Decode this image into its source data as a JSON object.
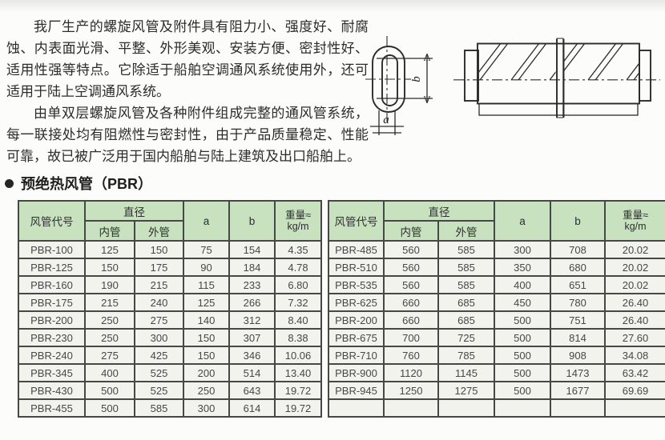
{
  "intro": {
    "paragraph1": "我厂生产的螺旋风管及附件具有阻力小、强度好、耐腐蚀、内表面光滑、平整、外形美观、安装方便、密封性好、适用性强等特点。它除适于船舶空调通风系统使用外，还可适用于陆上空调通风系统。",
    "paragraph2": "由单双层螺旋风管及各种附件组成完整的通风管系统，每一联接处均有阻燃性与密封性，由于产品质量稳定、性能可靠，故已被广泛用于国内船舶与陆上建筑及出口船舶上。"
  },
  "section": {
    "title": "预绝热风管（PBR）"
  },
  "diagram": {
    "dim_a_label": "a",
    "dim_b_label": "b"
  },
  "table": {
    "headers": {
      "code": "风管代号",
      "diameter": "直径",
      "inner": "内管",
      "outer": "外管",
      "a": "a",
      "b": "b",
      "weight_top": "重量≈",
      "weight_bottom": "kg/m"
    },
    "left_rows": [
      [
        "PBR-100",
        "125",
        "150",
        "75",
        "154",
        "4.35"
      ],
      [
        "PBR-125",
        "150",
        "175",
        "90",
        "184",
        "4.78"
      ],
      [
        "PBR-160",
        "190",
        "215",
        "115",
        "233",
        "6.80"
      ],
      [
        "PBR-175",
        "215",
        "240",
        "125",
        "266",
        "7.32"
      ],
      [
        "PBR-200",
        "250",
        "275",
        "140",
        "312",
        "8.40"
      ],
      [
        "PBR-230",
        "250",
        "300",
        "150",
        "307",
        "8.38"
      ],
      [
        "PBR-240",
        "275",
        "425",
        "150",
        "346",
        "10.06"
      ],
      [
        "PBR-345",
        "400",
        "525",
        "200",
        "514",
        "13.40"
      ],
      [
        "PBR-430",
        "500",
        "525",
        "250",
        "643",
        "19.72"
      ],
      [
        "PBR-455",
        "500",
        "585",
        "300",
        "614",
        "19.72"
      ]
    ],
    "right_rows": [
      [
        "PBR-485",
        "560",
        "585",
        "300",
        "708",
        "20.02"
      ],
      [
        "PBR-510",
        "560",
        "585",
        "350",
        "680",
        "20.02"
      ],
      [
        "PBR-535",
        "560",
        "585",
        "400",
        "651",
        "20.02"
      ],
      [
        "PBR-625",
        "660",
        "685",
        "450",
        "780",
        "26.40"
      ],
      [
        "PBR-200",
        "660",
        "685",
        "500",
        "751",
        "26.40"
      ],
      [
        "PBR-675",
        "700",
        "725",
        "500",
        "814",
        "27.60"
      ],
      [
        "PBR-710",
        "760",
        "785",
        "500",
        "908",
        "34.08"
      ],
      [
        "PBR-900",
        "1120",
        "1145",
        "500",
        "1473",
        "63.42"
      ],
      [
        "PBR-945",
        "1250",
        "1275",
        "500",
        "1677",
        "69.69"
      ],
      [
        "",
        "",
        "",
        "",
        "",
        ""
      ]
    ]
  },
  "colors": {
    "header_bg": "#c8e2c0",
    "cell_bg": "#f2f3ed",
    "border": "#474746"
  }
}
